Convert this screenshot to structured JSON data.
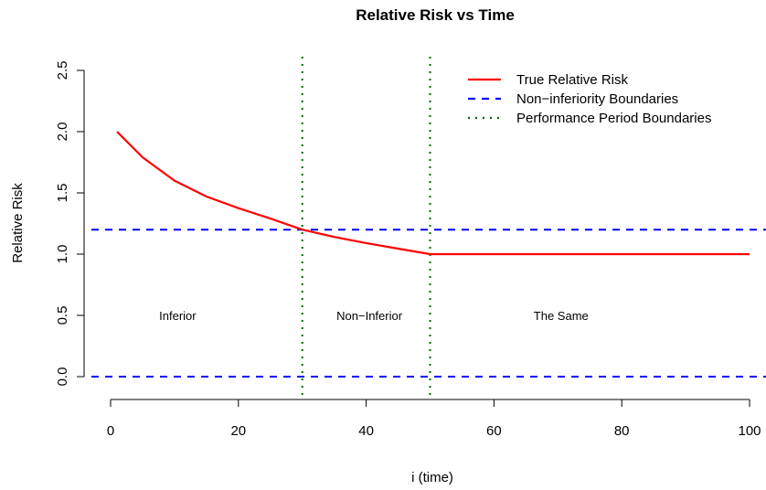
{
  "chart_data": {
    "type": "line",
    "title": "Relative Risk vs Time",
    "xlabel": "i (time)",
    "ylabel": "Relative Risk",
    "xlim": [
      1,
      100
    ],
    "ylim": [
      0,
      2.5
    ],
    "x_ticks": [
      0,
      20,
      40,
      60,
      80,
      100
    ],
    "y_ticks": [
      0.0,
      0.5,
      1.0,
      1.5,
      2.0,
      2.5
    ],
    "x_tick_labels": [
      "0",
      "20",
      "40",
      "60",
      "80",
      "100"
    ],
    "y_tick_labels": [
      "0.0",
      "0.5",
      "1.0",
      "1.5",
      "2.0",
      "2.5"
    ],
    "grid": false,
    "legend_position": "top-right",
    "series": [
      {
        "name": "True Relative Risk",
        "color": "#ff0000",
        "style": "solid",
        "x": [
          1,
          5,
          10,
          15,
          20,
          25,
          30,
          35,
          40,
          45,
          50,
          51,
          60,
          70,
          80,
          90,
          100
        ],
        "y": [
          2.0,
          1.79,
          1.6,
          1.47,
          1.375,
          1.29,
          1.2,
          1.14,
          1.09,
          1.045,
          1.0,
          1.0,
          1.0,
          1.0,
          1.0,
          1.0,
          1.0
        ]
      }
    ],
    "horizontal_lines": [
      {
        "name": "Non-inferiority Boundaries",
        "y": 1.2,
        "color": "#0000ff",
        "style": "dashed"
      },
      {
        "name": "Non-inferiority Boundaries",
        "y": 0.0,
        "color": "#0000ff",
        "style": "dashed"
      }
    ],
    "vertical_lines": [
      {
        "name": "Performance Period Boundaries",
        "x": 30,
        "color": "#006400",
        "style": "dotted"
      },
      {
        "name": "Performance Period Boundaries",
        "x": 50,
        "color": "#006400",
        "style": "dotted"
      }
    ],
    "legend": [
      {
        "label": "True Relative Risk",
        "color": "#ff0000",
        "style": "solid"
      },
      {
        "label": "Non−inferiority Boundaries",
        "color": "#0000ff",
        "style": "dashed"
      },
      {
        "label": "Performance Period Boundaries",
        "color": "#006400",
        "style": "dotted"
      }
    ],
    "annotations": [
      {
        "text": "Inferior",
        "x": 10.5,
        "y": 0.5
      },
      {
        "text": "Non−Inferior",
        "x": 40.5,
        "y": 0.5
      },
      {
        "text": "The Same",
        "x": 70.5,
        "y": 0.5
      }
    ]
  }
}
